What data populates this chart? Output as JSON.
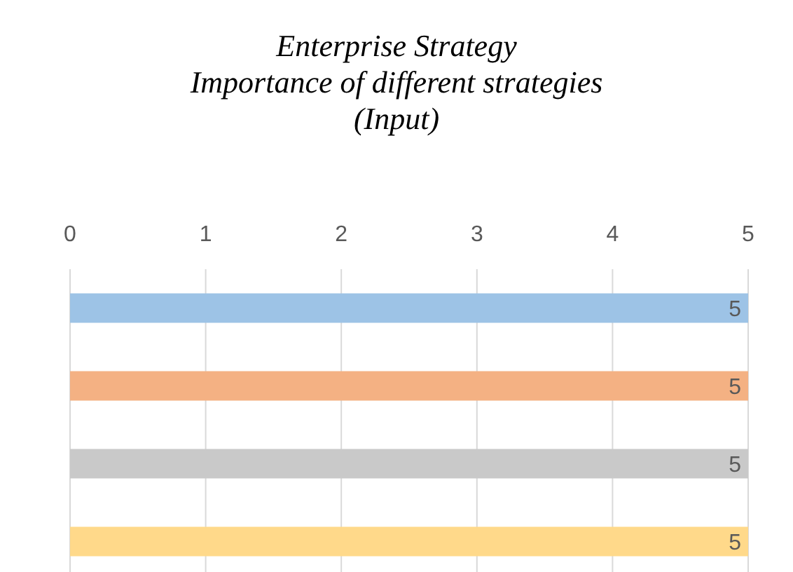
{
  "chart_data": {
    "type": "bar",
    "orientation": "horizontal",
    "title": "Enterprise Strategy\nImportance of different strategies\n(Input)",
    "categories": [
      null,
      null,
      null,
      null
    ],
    "values": [
      5,
      5,
      5,
      5
    ],
    "colors": [
      "#9dc3e6",
      "#f4b183",
      "#c9c9c9",
      "#ffd98a"
    ],
    "xlim": [
      0,
      5
    ],
    "xticks": [
      0,
      1,
      2,
      3,
      4,
      5
    ],
    "grid": "x",
    "data_labels": true,
    "tick_labels": "x"
  }
}
